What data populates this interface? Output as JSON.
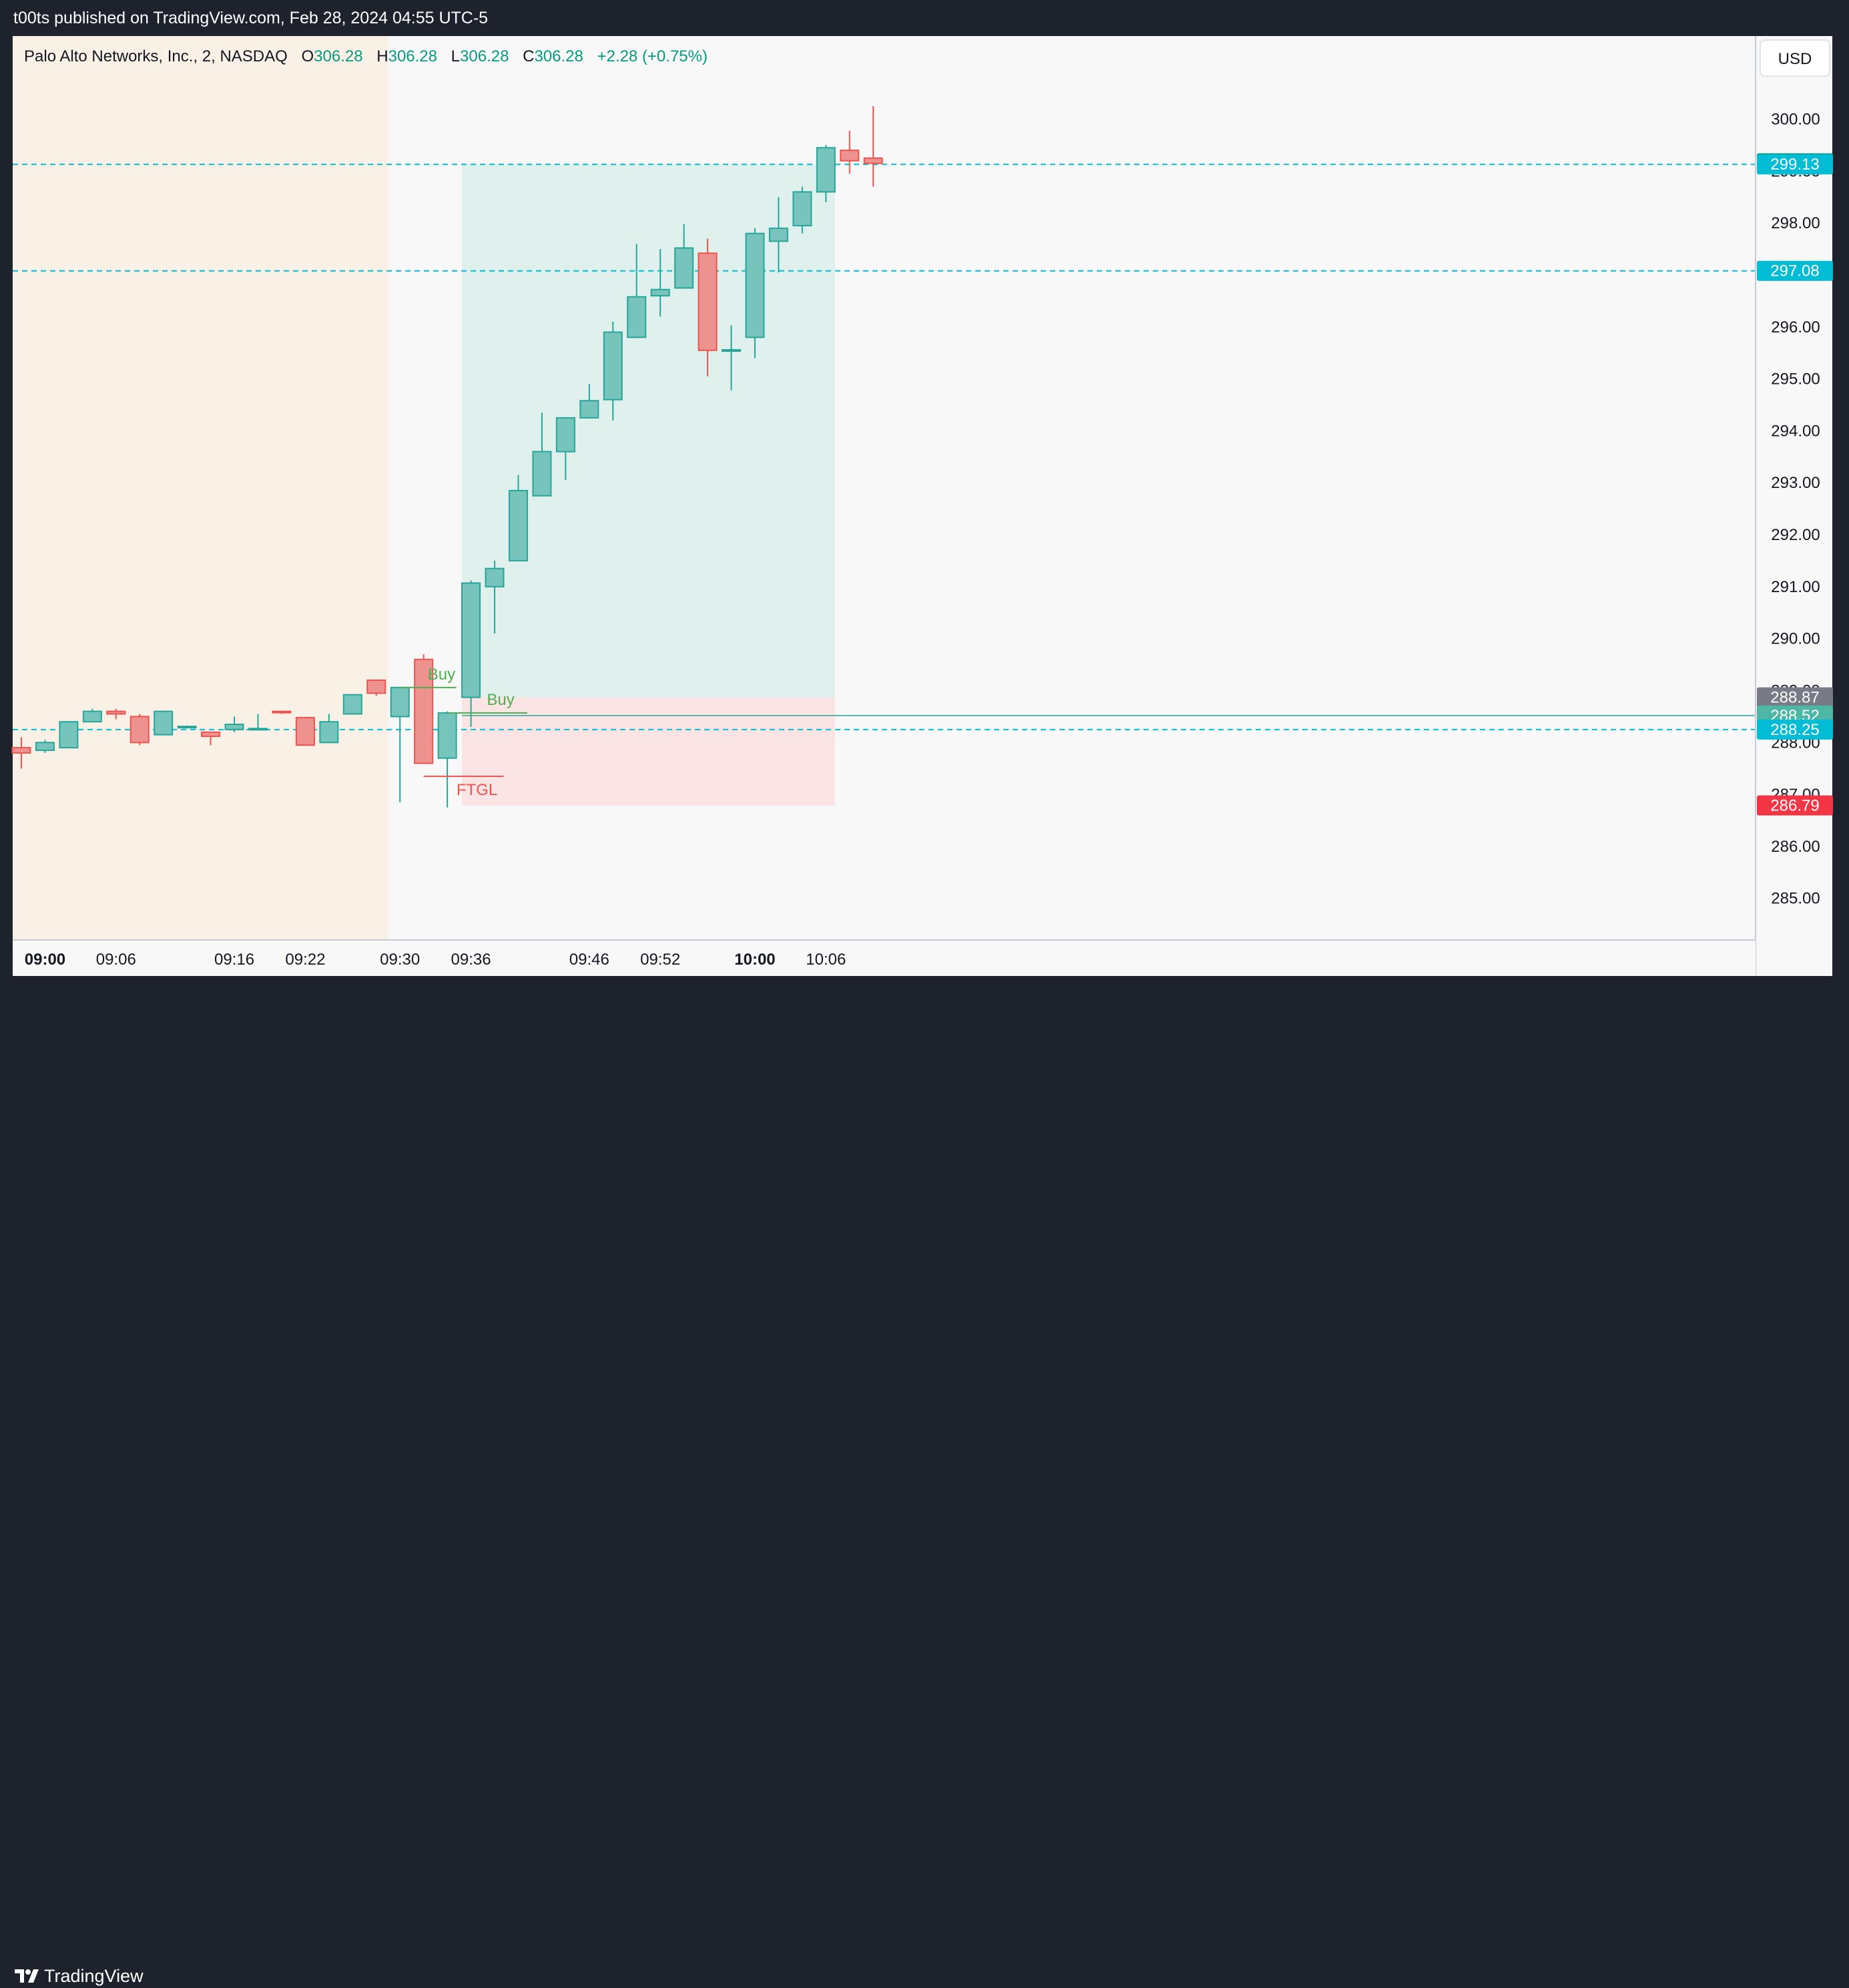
{
  "header": {
    "publish_text": "t00ts published on TradingView.com, Feb 28, 2024 04:55 UTC-5"
  },
  "legend": {
    "symbol": "Palo Alto Networks, Inc., 2, NASDAQ",
    "o_label": "O",
    "o_value": "306.28",
    "h_label": "H",
    "h_value": "306.28",
    "l_label": "L",
    "l_value": "306.28",
    "c_label": "C",
    "c_value": "306.28",
    "change": "+2.28 (+0.75%)"
  },
  "currency_button": "USD",
  "footer": {
    "brand": "TradingView"
  },
  "colors": {
    "up": "#26a69a",
    "up_fill": "#76c4bc",
    "down": "#ef5350",
    "down_fill": "#ee9290",
    "premarket_bg": "#faf1e6",
    "chart_bg": "#f8f8f8",
    "profit_zone": "#dff0ed",
    "loss_zone": "#fae4e4",
    "hline": "#00bcd4"
  },
  "chart_data": {
    "type": "candlestick",
    "symbol": "PANW",
    "timeframe": "2",
    "x_tick_labels": [
      {
        "label": "09:00",
        "bar": 1,
        "bold": true
      },
      {
        "label": "09:06",
        "bar": 4
      },
      {
        "label": "09:16",
        "bar": 9
      },
      {
        "label": "09:22",
        "bar": 12
      },
      {
        "label": "09:30",
        "bar": 16
      },
      {
        "label": "09:36",
        "bar": 19
      },
      {
        "label": "09:46",
        "bar": 24
      },
      {
        "label": "09:52",
        "bar": 27
      },
      {
        "label": "10:00",
        "bar": 31,
        "bold": true
      },
      {
        "label": "10:06",
        "bar": 34
      }
    ],
    "y_ticks": [
      "285.00",
      "286.00",
      "287.00",
      "288.00",
      "289.00",
      "290.00",
      "291.00",
      "292.00",
      "293.00",
      "294.00",
      "295.00",
      "296.00",
      "297.00",
      "298.00",
      "299.00",
      "300.00"
    ],
    "ylim": [
      284.2,
      301.6
    ],
    "session_open_bar": 16,
    "candles": [
      {
        "o": 287.9,
        "h": 288.1,
        "l": 287.5,
        "c": 287.8
      },
      {
        "o": 287.85,
        "h": 288.05,
        "l": 287.8,
        "c": 288.0
      },
      {
        "o": 287.9,
        "h": 288.4,
        "l": 287.9,
        "c": 288.4
      },
      {
        "o": 288.4,
        "h": 288.65,
        "l": 288.4,
        "c": 288.6
      },
      {
        "o": 288.6,
        "h": 288.65,
        "l": 288.45,
        "c": 288.55
      },
      {
        "o": 288.5,
        "h": 288.55,
        "l": 287.95,
        "c": 288.0
      },
      {
        "o": 288.15,
        "h": 288.6,
        "l": 288.15,
        "c": 288.6
      },
      {
        "o": 288.3,
        "h": 288.33,
        "l": 288.28,
        "c": 288.31
      },
      {
        "o": 288.2,
        "h": 288.2,
        "l": 287.95,
        "c": 288.12
      },
      {
        "o": 288.25,
        "h": 288.5,
        "l": 288.2,
        "c": 288.35
      },
      {
        "o": 288.26,
        "h": 288.55,
        "l": 288.24,
        "c": 288.27
      },
      {
        "o": 288.6,
        "h": 288.6,
        "l": 288.55,
        "c": 288.58
      },
      {
        "o": 288.48,
        "h": 288.48,
        "l": 287.95,
        "c": 287.95
      },
      {
        "o": 288.0,
        "h": 288.55,
        "l": 288.0,
        "c": 288.4
      },
      {
        "o": 288.55,
        "h": 288.9,
        "l": 288.55,
        "c": 288.92
      },
      {
        "o": 289.2,
        "h": 289.2,
        "l": 288.9,
        "c": 288.95
      },
      {
        "o": 288.5,
        "h": 289.0,
        "l": 286.85,
        "c": 289.06
      },
      {
        "o": 289.6,
        "h": 289.7,
        "l": 287.6,
        "c": 287.6
      },
      {
        "o": 287.7,
        "h": 288.6,
        "l": 286.75,
        "c": 288.57
      },
      {
        "o": 288.87,
        "h": 291.12,
        "l": 288.3,
        "c": 291.07
      },
      {
        "o": 291.0,
        "h": 291.5,
        "l": 290.1,
        "c": 291.35
      },
      {
        "o": 291.5,
        "h": 293.15,
        "l": 291.5,
        "c": 292.85
      },
      {
        "o": 292.75,
        "h": 294.35,
        "l": 292.75,
        "c": 293.6
      },
      {
        "o": 293.6,
        "h": 294.25,
        "l": 293.05,
        "c": 294.25
      },
      {
        "o": 294.25,
        "h": 294.9,
        "l": 294.25,
        "c": 294.58
      },
      {
        "o": 294.6,
        "h": 296.1,
        "l": 294.2,
        "c": 295.9
      },
      {
        "o": 295.8,
        "h": 297.6,
        "l": 295.8,
        "c": 296.58
      },
      {
        "o": 296.6,
        "h": 297.5,
        "l": 296.2,
        "c": 296.72
      },
      {
        "o": 296.75,
        "h": 297.98,
        "l": 296.75,
        "c": 297.52
      },
      {
        "o": 297.42,
        "h": 297.7,
        "l": 295.05,
        "c": 295.55
      },
      {
        "o": 295.56,
        "h": 296.03,
        "l": 294.78,
        "c": 295.56
      },
      {
        "o": 295.8,
        "h": 297.9,
        "l": 295.4,
        "c": 297.8
      },
      {
        "o": 297.65,
        "h": 298.5,
        "l": 297.05,
        "c": 297.9
      },
      {
        "o": 297.95,
        "h": 298.7,
        "l": 297.8,
        "c": 298.6
      },
      {
        "o": 298.6,
        "h": 299.5,
        "l": 298.4,
        "c": 299.45
      },
      {
        "o": 299.4,
        "h": 299.78,
        "l": 298.95,
        "c": 299.2
      },
      {
        "o": 299.25,
        "h": 300.25,
        "l": 298.7,
        "c": 299.15
      }
    ],
    "horizontal_lines": [
      299.13,
      297.08,
      288.25
    ],
    "price_labels": [
      {
        "value": 299.15,
        "text": "299.15",
        "color": "#089981"
      },
      {
        "value": 299.13,
        "text": "299.13",
        "color": "#00bcd4"
      },
      {
        "value": 297.08,
        "text": "297.08",
        "color": "#00bcd4"
      },
      {
        "value": 288.87,
        "text": "288.87",
        "color": "#787b86"
      },
      {
        "value": 288.52,
        "text": "288.52",
        "color": "#4db6a5"
      },
      {
        "value": 288.25,
        "text": "288.25",
        "color": "#00bcd4"
      },
      {
        "value": 286.79,
        "text": "286.79",
        "color": "#f23645"
      }
    ],
    "position": {
      "start_bar": 19,
      "end_bar": 34,
      "entry": 288.87,
      "target": 299.13,
      "stop": 286.79,
      "entry_line": 288.52
    },
    "annotations": [
      {
        "text": "Buy",
        "type": "buy",
        "bar_from": 16,
        "bar_to": 18,
        "price": 289.06
      },
      {
        "text": "Buy",
        "type": "buy",
        "bar_from": 18,
        "bar_to": 21,
        "price": 288.57
      },
      {
        "text": "FTGL",
        "type": "sell",
        "bar_from": 17,
        "bar_to": 20,
        "price": 287.35
      }
    ]
  }
}
